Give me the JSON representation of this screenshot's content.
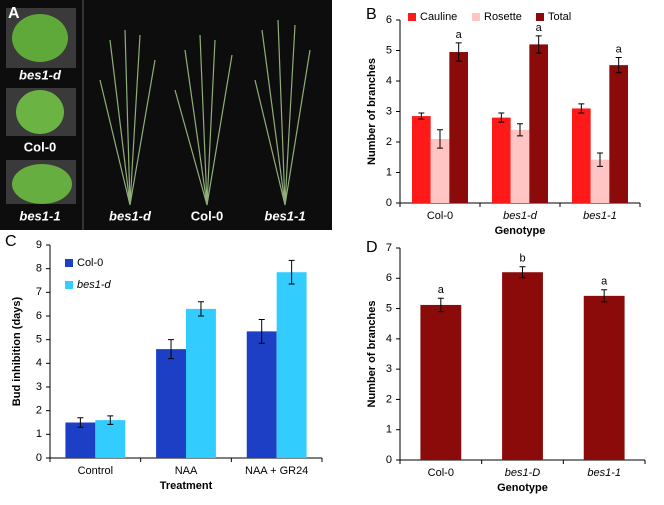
{
  "panel_a": {
    "panel": "A",
    "pot_labels": [
      "bes1-d",
      "Col-0",
      "bes1-1"
    ],
    "plant_labels": [
      "bes1-d",
      "Col-0",
      "bes1-1"
    ]
  },
  "chart_data": [
    {
      "type": "bar",
      "panel": "B",
      "xlabel": "Genotype",
      "ylabel": "Number of branches",
      "categories": [
        "Col-0",
        "bes1-d",
        "bes1-1"
      ],
      "series": [
        {
          "name": "Cauline",
          "color": "#ff1a1a",
          "values": [
            2.85,
            2.8,
            3.1
          ],
          "errors": [
            0.1,
            0.15,
            0.15
          ]
        },
        {
          "name": "Rosette",
          "color": "#ffc4c4",
          "values": [
            2.1,
            2.4,
            1.42
          ],
          "errors": [
            0.3,
            0.2,
            0.22
          ]
        },
        {
          "name": "Total",
          "color": "#8b0a0a",
          "values": [
            4.95,
            5.2,
            4.52
          ],
          "errors": [
            0.3,
            0.28,
            0.25
          ],
          "labels": [
            "a",
            "a",
            "a"
          ]
        }
      ],
      "ylim": [
        0,
        6
      ],
      "yticks": [
        0,
        1,
        2,
        3,
        4,
        5,
        6
      ],
      "legend": "top"
    },
    {
      "type": "bar",
      "panel": "C",
      "xlabel": "Treatment",
      "ylabel": "Bud inhibition (days)",
      "categories": [
        "Control",
        "NAA",
        "NAA + GR24"
      ],
      "series": [
        {
          "name": "Col-0",
          "color": "#1c3fc6",
          "values": [
            1.5,
            4.6,
            5.35
          ],
          "errors": [
            0.2,
            0.4,
            0.5
          ]
        },
        {
          "name": "bes1-d",
          "color": "#33ccff",
          "values": [
            1.6,
            6.3,
            7.85
          ],
          "errors": [
            0.18,
            0.3,
            0.5
          ]
        }
      ],
      "ylim": [
        0,
        9
      ],
      "yticks": [
        0,
        1,
        2,
        3,
        4,
        5,
        6,
        7,
        8,
        9
      ],
      "legend": "upper left"
    },
    {
      "type": "bar",
      "panel": "D",
      "xlabel": "Genotype",
      "ylabel": "Number of branches",
      "categories": [
        "Col-0",
        "bes1-D",
        "bes1-1"
      ],
      "values": [
        5.12,
        6.2,
        5.42
      ],
      "errors": [
        0.22,
        0.18,
        0.2
      ],
      "labels": [
        "a",
        "b",
        "a"
      ],
      "color": "#8b0a0a",
      "ylim": [
        0,
        7
      ],
      "yticks": [
        0,
        1,
        2,
        3,
        4,
        5,
        6,
        7
      ]
    }
  ]
}
